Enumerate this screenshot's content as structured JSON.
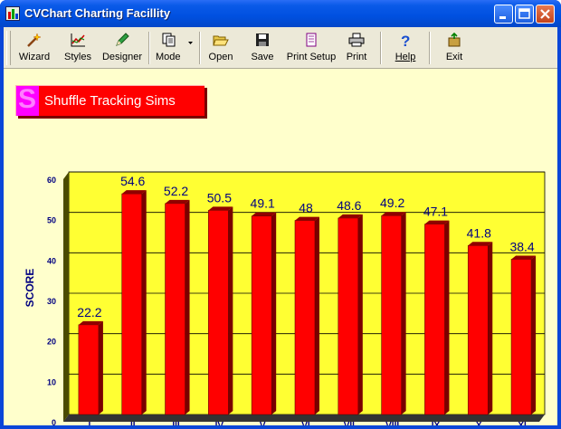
{
  "window": {
    "title": "CVChart Charting Facillity"
  },
  "toolbar": {
    "wizard": "Wizard",
    "styles": "Styles",
    "designer": "Designer",
    "mode": "Mode",
    "open": "Open",
    "save": "Save",
    "print_setup": "Print Setup",
    "print": "Print",
    "help": "Help",
    "exit": "Exit"
  },
  "colors": {
    "plot_bg": "#ffff33",
    "bar": "#ff0000",
    "client_bg": "#ffffcc",
    "axis_text": "#000080",
    "title_badge": "#ff00ff"
  },
  "chart_data": {
    "type": "bar",
    "title": "Shuffle Tracking Sims",
    "ylabel": "SCORE",
    "xlabel": "",
    "categories": [
      "I",
      "II",
      "III",
      "IV",
      "V",
      "VI",
      "VII",
      "VIII",
      "IX",
      "X",
      "XI"
    ],
    "values": [
      22.2,
      54.6,
      52.2,
      50.5,
      49.1,
      48,
      48.6,
      49.2,
      47.1,
      41.8,
      38.4
    ],
    "ylim": [
      0,
      60
    ],
    "yticks": [
      "0",
      "10",
      "20",
      "30",
      "40",
      "50",
      "60"
    ],
    "data_labels": [
      "22.2",
      "54.6",
      "52.2",
      "50.5",
      "49.1",
      "48",
      "48.6",
      "49.2",
      "47.1",
      "41.8",
      "38.4"
    ],
    "grid": true,
    "style": "3d"
  }
}
